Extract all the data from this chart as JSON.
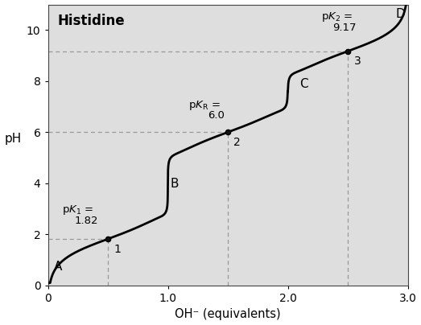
{
  "title": "Histidine",
  "xlabel": "OH⁻ (equivalents)",
  "ylabel": "pH",
  "xlim": [
    0,
    3.0
  ],
  "ylim": [
    0,
    11
  ],
  "background_color": "#dedede",
  "curve_color": "#000000",
  "curve_linewidth": 2.0,
  "pka1": 1.82,
  "pka2": 9.17,
  "pkaR": 6.0,
  "dashed_line_color": "#999999",
  "point_color": "#000000",
  "point_size": 4.5,
  "yticks": [
    0,
    2,
    4,
    6,
    8,
    10
  ],
  "xticks": [
    0,
    1.0,
    2.0,
    3.0
  ],
  "xtick_labels": [
    "0",
    "1.0",
    "2.0",
    "3.0"
  ]
}
